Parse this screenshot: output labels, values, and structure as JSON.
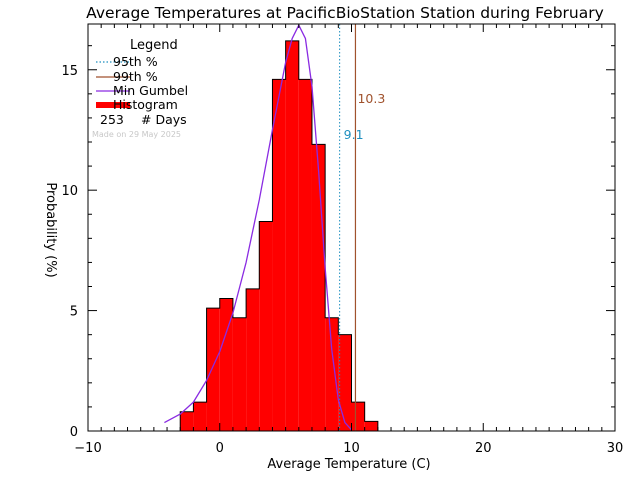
{
  "chart_data": {
    "type": "bar",
    "title": "Average Temperatures at PacificBioStation Station during February",
    "xlabel": "Average Temperature (C)",
    "ylabel": "Probability (%)",
    "xlim": [
      -10,
      30
    ],
    "ylim": [
      0,
      16.9
    ],
    "x_ticks": [
      -10,
      0,
      10,
      20,
      30
    ],
    "y_ticks": [
      0,
      5,
      10,
      15
    ],
    "grid": false,
    "legend_position": "top-left",
    "legend_title": "Legend",
    "legend": [
      {
        "name": "95th %",
        "style": "dotted",
        "color": "#1f8fbf"
      },
      {
        "name": "99th %",
        "style": "solid",
        "color": "#a0522d"
      },
      {
        "name": "Min Gumbel",
        "style": "solid",
        "color": "#8a2be2"
      },
      {
        "name": "Histogram",
        "style": "thick",
        "color": "#ff0000"
      }
    ],
    "days_count": "253",
    "days_label": "# Days",
    "made_on": "Made on 29 May 2025",
    "histogram": {
      "bin_width": 1,
      "bins": [
        {
          "x0": -3,
          "x1": -2,
          "value": 0.8
        },
        {
          "x0": -2,
          "x1": -1,
          "value": 1.2
        },
        {
          "x0": -1,
          "x1": 0,
          "value": 5.1
        },
        {
          "x0": 0,
          "x1": 1,
          "value": 5.5
        },
        {
          "x0": 1,
          "x1": 2,
          "value": 4.7
        },
        {
          "x0": 2,
          "x1": 3,
          "value": 5.9
        },
        {
          "x0": 3,
          "x1": 4,
          "value": 8.7
        },
        {
          "x0": 4,
          "x1": 5,
          "value": 14.6
        },
        {
          "x0": 5,
          "x1": 6,
          "value": 16.2
        },
        {
          "x0": 6,
          "x1": 7,
          "value": 14.6
        },
        {
          "x0": 7,
          "x1": 8,
          "value": 11.9
        },
        {
          "x0": 8,
          "x1": 9,
          "value": 4.7
        },
        {
          "x0": 9,
          "x1": 10,
          "value": 4.0
        },
        {
          "x0": 10,
          "x1": 11,
          "value": 1.2
        },
        {
          "x0": 11,
          "x1": 12,
          "value": 0.4
        }
      ]
    },
    "percentile_95": {
      "value": 9.1,
      "label": "9.1",
      "color": "#1f8fbf"
    },
    "percentile_99": {
      "value": 10.3,
      "label": "10.3",
      "color": "#a0522d"
    },
    "gumbel_curve": {
      "color": "#8a2be2",
      "points": [
        [
          -4.2,
          0.35
        ],
        [
          -3,
          0.7
        ],
        [
          -2,
          1.2
        ],
        [
          -1,
          2.1
        ],
        [
          0,
          3.3
        ],
        [
          1,
          4.9
        ],
        [
          2,
          7.0
        ],
        [
          3,
          9.6
        ],
        [
          4,
          12.5
        ],
        [
          5,
          15.3
        ],
        [
          5.5,
          16.3
        ],
        [
          6,
          16.85
        ],
        [
          6.5,
          16.3
        ],
        [
          7,
          14.3
        ],
        [
          7.5,
          10.8
        ],
        [
          8,
          6.8
        ],
        [
          8.5,
          3.4
        ],
        [
          9,
          1.3
        ],
        [
          9.5,
          0.35
        ],
        [
          10,
          0.05
        ]
      ]
    }
  }
}
